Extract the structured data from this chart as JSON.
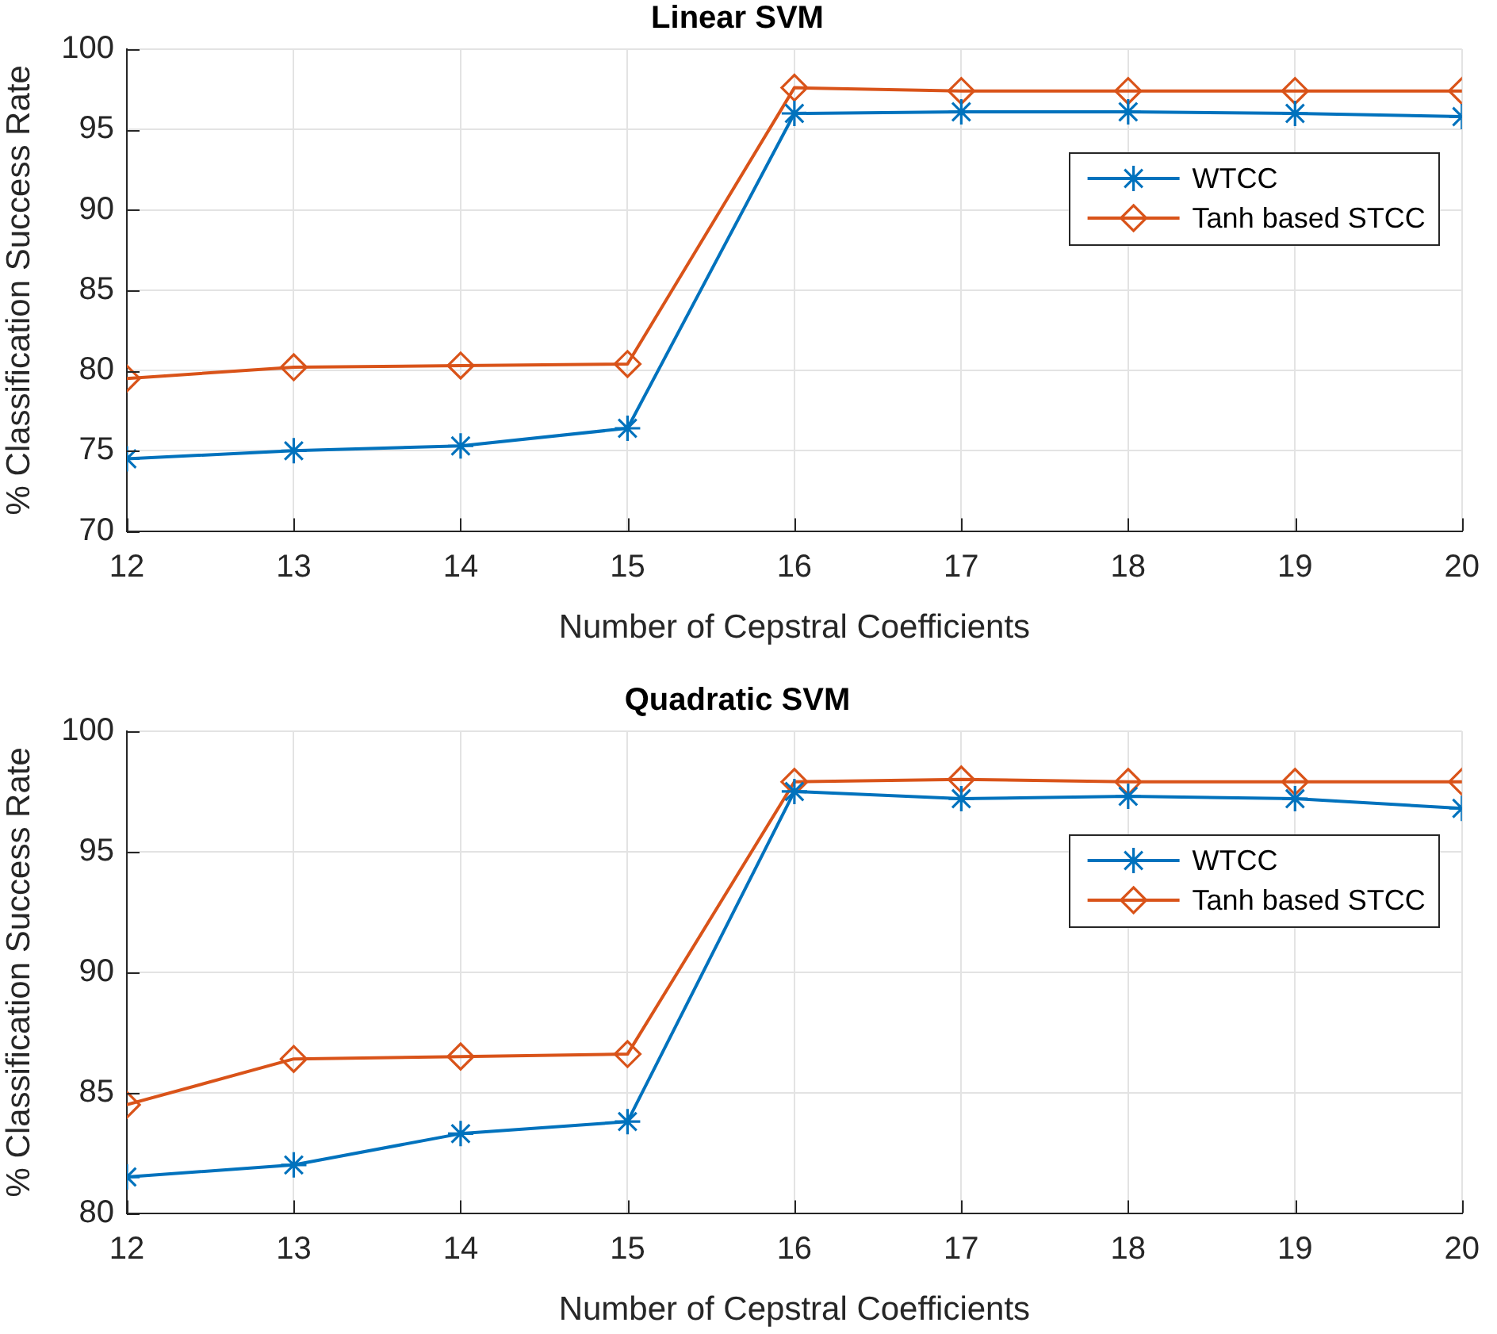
{
  "chart_data": [
    {
      "type": "line",
      "title": "Linear SVM",
      "xlabel": "Number of Cepstral Coefficients",
      "ylabel": "% Classification Success Rate",
      "x": [
        12,
        13,
        14,
        15,
        16,
        17,
        18,
        19,
        20
      ],
      "series": [
        {
          "name": "WTCC",
          "color": "#0072bd",
          "marker": "cross",
          "values": [
            74.5,
            75.0,
            75.3,
            76.4,
            96.0,
            96.1,
            96.1,
            96.0,
            95.8
          ]
        },
        {
          "name": "Tanh based STCC",
          "color": "#d95319",
          "marker": "diamond",
          "values": [
            79.5,
            80.2,
            80.3,
            80.4,
            97.6,
            97.4,
            97.4,
            97.4,
            97.4
          ]
        }
      ],
      "xlim": [
        12,
        20
      ],
      "xticks": [
        12,
        13,
        14,
        15,
        16,
        17,
        18,
        19,
        20
      ],
      "ylim": [
        70,
        100
      ],
      "yticks": [
        70,
        75,
        80,
        85,
        90,
        95,
        100
      ],
      "grid": true,
      "legend": "top right",
      "line_style": "solid"
    },
    {
      "type": "line",
      "title": "Quadratic SVM",
      "xlabel": "Number of Cepstral Coefficients",
      "ylabel": "% Classification Success Rate",
      "x": [
        12,
        13,
        14,
        15,
        16,
        17,
        18,
        19,
        20
      ],
      "series": [
        {
          "name": "WTCC",
          "color": "#0072bd",
          "marker": "cross",
          "values": [
            81.5,
            82.0,
            83.3,
            83.8,
            97.5,
            97.2,
            97.3,
            97.2,
            96.8
          ]
        },
        {
          "name": "Tanh based STCC",
          "color": "#d95319",
          "marker": "diamond",
          "values": [
            84.5,
            86.4,
            86.5,
            86.6,
            97.9,
            98.0,
            97.9,
            97.9,
            97.9
          ]
        }
      ],
      "xlim": [
        12,
        20
      ],
      "xticks": [
        12,
        13,
        14,
        15,
        16,
        17,
        18,
        19,
        20
      ],
      "ylim": [
        80,
        100
      ],
      "yticks": [
        80,
        85,
        90,
        95,
        100
      ],
      "grid": true,
      "legend": "top right",
      "line_style": "solid"
    }
  ]
}
